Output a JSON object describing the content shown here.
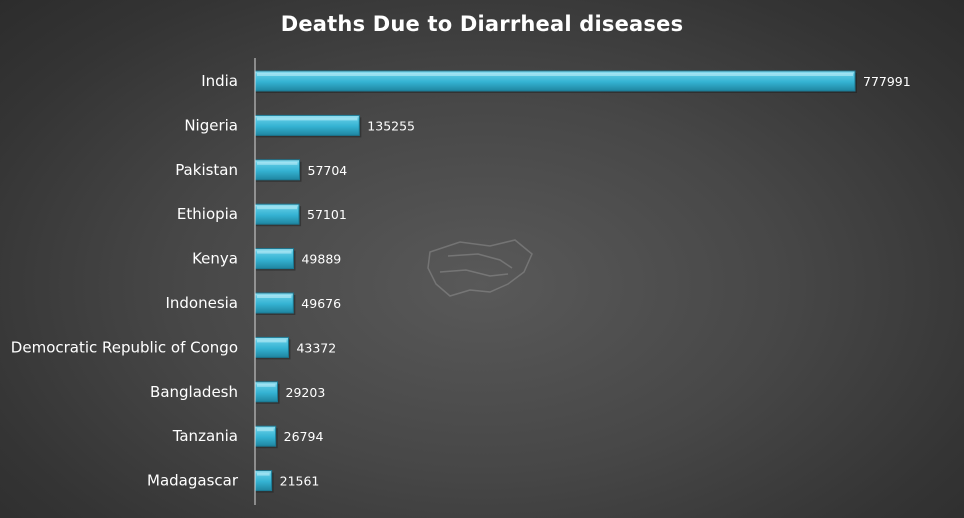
{
  "chart_data": {
    "type": "bar",
    "orientation": "horizontal",
    "title": "Deaths Due to Diarrheal diseases",
    "xlabel": "",
    "ylabel": "",
    "categories": [
      "India",
      "Nigeria",
      "Pakistan",
      "Ethiopia",
      "Kenya",
      "Indonesia",
      "Democratic Republic of Congo",
      "Bangladesh",
      "Tanzania",
      "Madagascar"
    ],
    "values": [
      777991,
      135255,
      57704,
      57101,
      49889,
      49676,
      43372,
      29203,
      26794,
      21561
    ],
    "xlim": [
      0,
      777991
    ],
    "grid": false,
    "legend": "none",
    "data_labels": true,
    "colors": {
      "bar_fill": "#38b6d6",
      "bar_highlight": "#8fdcef",
      "bar_shadow": "#1d7d97",
      "axis": "#d9d9d9",
      "text": "#ffffff"
    }
  }
}
